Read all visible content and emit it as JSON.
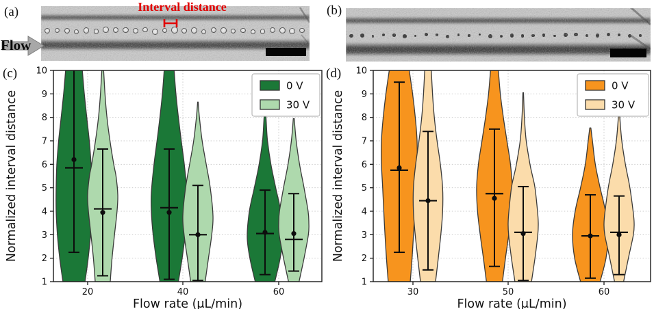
{
  "figure": {
    "panel_a": {
      "label": "(a)",
      "flow_label": "Flow",
      "annotation": "Interval distance",
      "annotation_color": "#e10000",
      "droplet_count": 27,
      "droplet_style": "ring",
      "scale_bar_color": "#050505"
    },
    "panel_b": {
      "label": "(b)",
      "droplet_count": 28,
      "droplet_style": "dot",
      "scale_bar_color": "#050505"
    },
    "panel_c_label": "(c)",
    "panel_d_label": "(d)"
  },
  "chart_data": [
    {
      "type": "violin",
      "panel": "c",
      "xlabel": "Flow rate (μL/min)",
      "ylabel": "Normalized interval distance",
      "ylim": [
        1,
        10
      ],
      "yticks": [
        1,
        2,
        3,
        4,
        5,
        6,
        7,
        8,
        9,
        10
      ],
      "categories": [
        "20",
        "40",
        "60"
      ],
      "grid": "dotted",
      "legend_position": "top-right",
      "legend": [
        {
          "label": "0 V",
          "color": "#1b7837"
        },
        {
          "label": "30 V",
          "color": "#aed9ad"
        }
      ],
      "series": [
        {
          "name": "0 V",
          "color": "#1b7837",
          "violins": [
            {
              "category": "20",
              "mean_dot": 6.2,
              "mean_line": 5.85,
              "whisker_low": 2.25,
              "whisker_high": 10,
              "profile": [
                [
                  1,
                  0.62
                ],
                [
                  2,
                  0.8
                ],
                [
                  3,
                  0.93
                ],
                [
                  4,
                  1.0
                ],
                [
                  5,
                  1.0
                ],
                [
                  6,
                  0.96
                ],
                [
                  7,
                  0.86
                ],
                [
                  8,
                  0.72
                ],
                [
                  9,
                  0.58
                ],
                [
                  10,
                  0.47
                ]
              ]
            },
            {
              "category": "40",
              "mean_dot": 3.95,
              "mean_line": 4.15,
              "whisker_low": 1.1,
              "whisker_high": 6.65,
              "profile": [
                [
                  1,
                  0.52
                ],
                [
                  2,
                  0.73
                ],
                [
                  3,
                  0.9
                ],
                [
                  4,
                  1.0
                ],
                [
                  4.8,
                  1.0
                ],
                [
                  6,
                  0.85
                ],
                [
                  7,
                  0.68
                ],
                [
                  8,
                  0.52
                ],
                [
                  9,
                  0.38
                ],
                [
                  10,
                  0.28
                ]
              ]
            },
            {
              "category": "60",
              "mean_dot": 3.1,
              "mean_line": 3.05,
              "whisker_low": 1.3,
              "whisker_high": 4.9,
              "profile": [
                [
                  1,
                  0.55
                ],
                [
                  2,
                  0.85
                ],
                [
                  2.9,
                  1.0
                ],
                [
                  4,
                  0.88
                ],
                [
                  5,
                  0.6
                ],
                [
                  6,
                  0.33
                ],
                [
                  7,
                  0.14
                ],
                [
                  7.8,
                  0.07
                ],
                [
                  8.5,
                  0.02
                ]
              ]
            }
          ]
        },
        {
          "name": "30 V",
          "color": "#aed9ad",
          "violins": [
            {
              "category": "20",
              "mean_dot": 3.95,
              "mean_line": 4.1,
              "whisker_low": 1.25,
              "whisker_high": 6.65,
              "profile": [
                [
                  1,
                  0.5
                ],
                [
                  2,
                  0.62
                ],
                [
                  3,
                  0.78
                ],
                [
                  4,
                  0.95
                ],
                [
                  4.7,
                  1.0
                ],
                [
                  5.5,
                  0.88
                ],
                [
                  6,
                  0.73
                ],
                [
                  7,
                  0.48
                ],
                [
                  8,
                  0.28
                ],
                [
                  9,
                  0.15
                ],
                [
                  10,
                  0.06
                ]
              ]
            },
            {
              "category": "40",
              "mean_dot": 3.0,
              "mean_line": 3.0,
              "whisker_low": 1.05,
              "whisker_high": 5.1,
              "profile": [
                [
                  1,
                  0.48
                ],
                [
                  2,
                  0.7
                ],
                [
                  3,
                  0.92
                ],
                [
                  3.8,
                  1.0
                ],
                [
                  5,
                  0.82
                ],
                [
                  6,
                  0.55
                ],
                [
                  7,
                  0.28
                ],
                [
                  8,
                  0.1
                ],
                [
                  8.65,
                  0.02
                ]
              ]
            },
            {
              "category": "60",
              "mean_dot": 3.05,
              "mean_line": 2.8,
              "whisker_low": 1.45,
              "whisker_high": 4.75,
              "profile": [
                [
                  1,
                  0.35
                ],
                [
                  2,
                  0.68
                ],
                [
                  3,
                  0.97
                ],
                [
                  3.5,
                  1.0
                ],
                [
                  4,
                  0.95
                ],
                [
                  5,
                  0.68
                ],
                [
                  6,
                  0.38
                ],
                [
                  7,
                  0.16
                ],
                [
                  7.95,
                  0.03
                ]
              ]
            }
          ]
        }
      ]
    },
    {
      "type": "violin",
      "panel": "d",
      "xlabel": "Flow rate (μL/min)",
      "ylabel": "Normalized interval distance",
      "ylim": [
        1,
        10
      ],
      "yticks": [
        1,
        2,
        3,
        4,
        5,
        6,
        7,
        8,
        9,
        10
      ],
      "categories": [
        "30",
        "50",
        "60"
      ],
      "grid": "dotted",
      "legend_position": "top-right",
      "legend": [
        {
          "label": "0 V",
          "color": "#f7941e"
        },
        {
          "label": "30 V",
          "color": "#fbdcab"
        }
      ],
      "series": [
        {
          "name": "0 V",
          "color": "#f7941e",
          "violins": [
            {
              "category": "30",
              "mean_dot": 5.85,
              "mean_line": 5.75,
              "whisker_low": 2.25,
              "whisker_high": 9.5,
              "profile": [
                [
                  1,
                  0.62
                ],
                [
                  2,
                  0.72
                ],
                [
                  3,
                  0.8
                ],
                [
                  4,
                  0.87
                ],
                [
                  5,
                  0.93
                ],
                [
                  6,
                  1.0
                ],
                [
                  7,
                  1.0
                ],
                [
                  8,
                  0.9
                ],
                [
                  9,
                  0.75
                ],
                [
                  10,
                  0.56
                ]
              ]
            },
            {
              "category": "50",
              "mean_dot": 4.55,
              "mean_line": 4.75,
              "whisker_low": 1.65,
              "whisker_high": 7.5,
              "profile": [
                [
                  1,
                  0.45
                ],
                [
                  2,
                  0.62
                ],
                [
                  3,
                  0.8
                ],
                [
                  4,
                  0.95
                ],
                [
                  5,
                  1.0
                ],
                [
                  6,
                  0.9
                ],
                [
                  7,
                  0.7
                ],
                [
                  8,
                  0.5
                ],
                [
                  9,
                  0.33
                ],
                [
                  10,
                  0.22
                ]
              ]
            },
            {
              "category": "60",
              "mean_dot": 2.95,
              "mean_line": 2.95,
              "whisker_low": 1.15,
              "whisker_high": 4.7,
              "profile": [
                [
                  1,
                  0.55
                ],
                [
                  2,
                  0.88
                ],
                [
                  3,
                  1.0
                ],
                [
                  4,
                  0.85
                ],
                [
                  5,
                  0.55
                ],
                [
                  6,
                  0.28
                ],
                [
                  7,
                  0.12
                ],
                [
                  7.55,
                  0.03
                ]
              ]
            }
          ]
        },
        {
          "name": "30 V",
          "color": "#fbdcab",
          "violins": [
            {
              "category": "30",
              "mean_dot": 4.45,
              "mean_line": 4.45,
              "whisker_low": 1.5,
              "whisker_high": 7.4,
              "profile": [
                [
                  1,
                  0.5
                ],
                [
                  2,
                  0.68
                ],
                [
                  3,
                  0.85
                ],
                [
                  4,
                  0.97
                ],
                [
                  5,
                  0.97
                ],
                [
                  6,
                  0.82
                ],
                [
                  7,
                  0.6
                ],
                [
                  8,
                  0.42
                ],
                [
                  9,
                  0.3
                ],
                [
                  10,
                  0.22
                ]
              ]
            },
            {
              "category": "50",
              "mean_dot": 3.05,
              "mean_line": 3.1,
              "whisker_low": 1.05,
              "whisker_high": 5.05,
              "profile": [
                [
                  1,
                  0.55
                ],
                [
                  2,
                  0.78
                ],
                [
                  3,
                  0.97
                ],
                [
                  3.5,
                  1.0
                ],
                [
                  4,
                  0.95
                ],
                [
                  5,
                  0.78
                ],
                [
                  5.5,
                  0.62
                ],
                [
                  6,
                  0.45
                ],
                [
                  7,
                  0.2
                ],
                [
                  8,
                  0.08
                ],
                [
                  9.05,
                  0.02
                ]
              ]
            },
            {
              "category": "60",
              "mean_dot": 3.0,
              "mean_line": 3.1,
              "whisker_low": 1.3,
              "whisker_high": 4.65,
              "profile": [
                [
                  1,
                  0.3
                ],
                [
                  2,
                  0.62
                ],
                [
                  3,
                  0.95
                ],
                [
                  3.5,
                  1.0
                ],
                [
                  4,
                  0.93
                ],
                [
                  5,
                  0.72
                ],
                [
                  6,
                  0.42
                ],
                [
                  7,
                  0.18
                ],
                [
                  8.15,
                  0.03
                ]
              ]
            }
          ]
        }
      ]
    }
  ]
}
